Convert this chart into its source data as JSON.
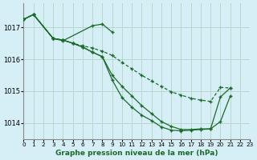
{
  "title": "Graphe pression niveau de la mer (hPa)",
  "background_color": "#d6eef5",
  "grid_color": "#b8d8cc",
  "line_color": "#1a6b2a",
  "ylim": [
    1013.5,
    1017.75
  ],
  "yticks": [
    1014,
    1015,
    1016,
    1017
  ],
  "xlim": [
    0,
    23
  ],
  "xticks": [
    0,
    1,
    2,
    3,
    4,
    5,
    6,
    7,
    8,
    9,
    10,
    11,
    12,
    13,
    14,
    15,
    16,
    17,
    18,
    19,
    20,
    21,
    22,
    23
  ],
  "sA_x": [
    0,
    1,
    3,
    4,
    7,
    8,
    9
  ],
  "sA_y": [
    1017.25,
    1017.4,
    1016.65,
    1016.58,
    1017.05,
    1017.1,
    1016.85
  ],
  "sB_x": [
    0,
    1,
    3,
    4,
    5,
    6,
    7,
    8,
    9,
    10,
    11,
    12,
    13,
    14,
    15,
    16,
    17,
    18,
    19,
    20,
    21
  ],
  "sB_y": [
    1017.25,
    1017.4,
    1016.65,
    1016.6,
    1016.5,
    1016.42,
    1016.35,
    1016.25,
    1016.12,
    1015.9,
    1015.7,
    1015.5,
    1015.32,
    1015.15,
    1014.98,
    1014.88,
    1014.78,
    1014.72,
    1014.68,
    1015.12,
    1015.1
  ],
  "sC_x": [
    0,
    1,
    3,
    4,
    5,
    6,
    7,
    8,
    9,
    10,
    11,
    12,
    13,
    14,
    15,
    16,
    17,
    18,
    19,
    20,
    21
  ],
  "sC_y": [
    1017.25,
    1017.4,
    1016.65,
    1016.6,
    1016.5,
    1016.38,
    1016.22,
    1016.08,
    1015.35,
    1014.8,
    1014.5,
    1014.25,
    1014.08,
    1013.88,
    1013.78,
    1013.76,
    1013.78,
    1013.8,
    1013.82,
    1014.05,
    1014.85
  ],
  "sD_x": [
    0,
    1,
    3,
    4,
    5,
    6,
    7,
    8,
    9,
    10,
    11,
    12,
    13,
    14,
    15,
    16,
    17,
    18,
    19,
    20,
    21
  ],
  "sD_y": [
    1017.25,
    1017.4,
    1016.65,
    1016.6,
    1016.5,
    1016.38,
    1016.22,
    1016.08,
    1015.5,
    1015.15,
    1014.85,
    1014.55,
    1014.3,
    1014.05,
    1013.9,
    1013.8,
    1013.8,
    1013.82,
    1013.82,
    1014.82,
    1015.1
  ]
}
